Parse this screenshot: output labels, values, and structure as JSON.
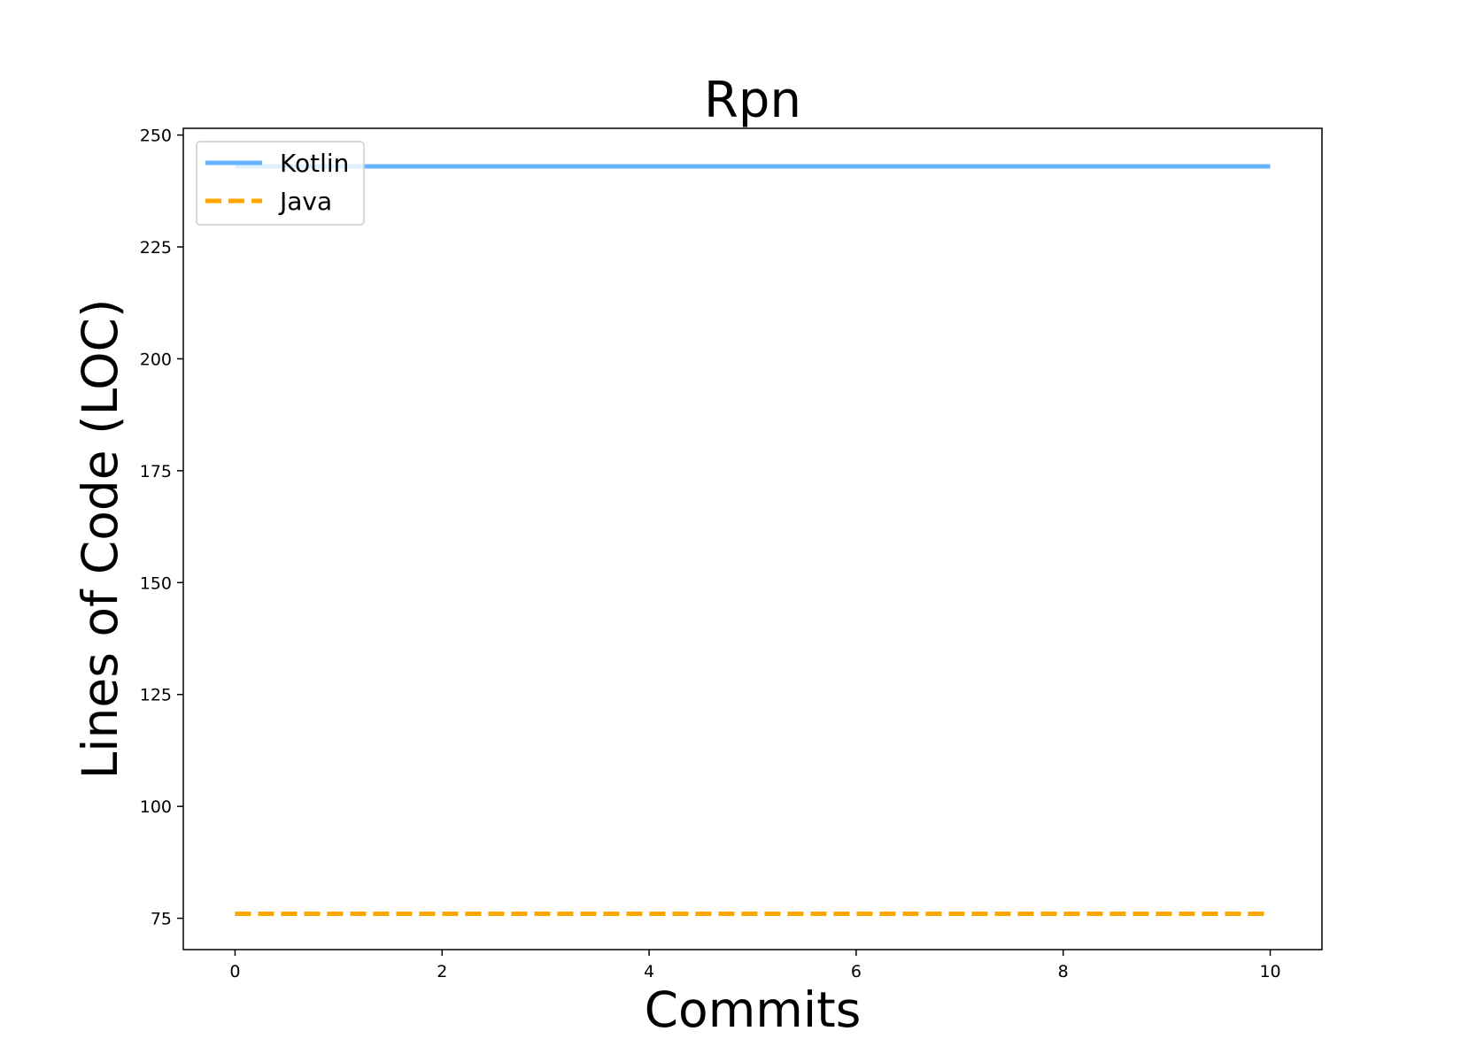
{
  "chart_data": {
    "type": "line",
    "title": "Rpn",
    "xlabel": "Commits",
    "ylabel": "Lines of Code (LOC)",
    "x": [
      0,
      1,
      2,
      3,
      4,
      5,
      6,
      7,
      8,
      9,
      10
    ],
    "series": [
      {
        "name": "Kotlin",
        "values": [
          243,
          243,
          243,
          243,
          243,
          243,
          243,
          243,
          243,
          243,
          243
        ],
        "color": "#66b3ff",
        "style": "solid"
      },
      {
        "name": "Java",
        "values": [
          76,
          76,
          76,
          76,
          76,
          76,
          76,
          76,
          76,
          76,
          76
        ],
        "color": "#ffa500",
        "style": "dashed"
      }
    ],
    "xlim": [
      -0.5,
      10.5
    ],
    "ylim": [
      68,
      251.5
    ],
    "xticks": [
      0,
      2,
      4,
      6,
      8,
      10
    ],
    "yticks": [
      75,
      100,
      125,
      150,
      175,
      200,
      225,
      250
    ],
    "grid": false,
    "legend_position": "top-left"
  }
}
